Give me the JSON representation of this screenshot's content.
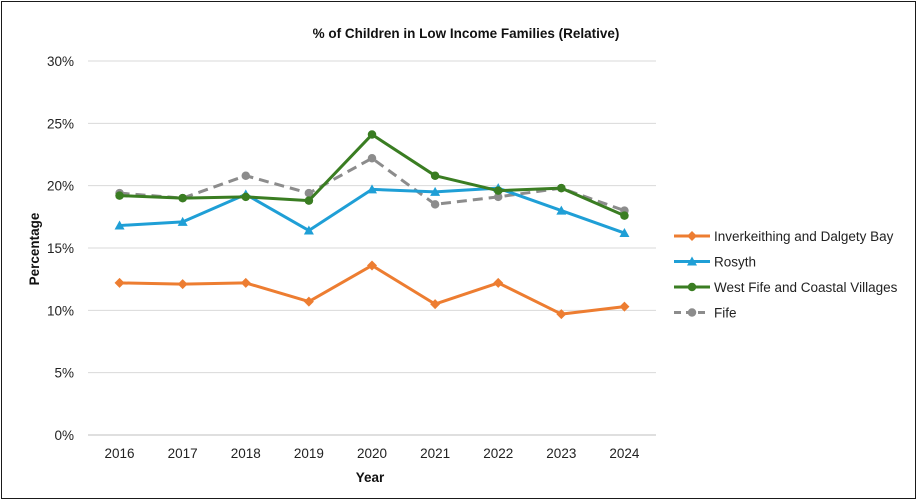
{
  "chart_data": {
    "type": "line",
    "title": "% of Children in Low Income Families (Relative)",
    "xlabel": "Year",
    "ylabel": "Percentage",
    "categories": [
      "2016",
      "2017",
      "2018",
      "2019",
      "2020",
      "2021",
      "2022",
      "2023",
      "2024"
    ],
    "ylim": [
      0,
      30
    ],
    "yticks": [
      0,
      5,
      10,
      15,
      20,
      25,
      30
    ],
    "ytick_labels": [
      "0%",
      "5%",
      "10%",
      "15%",
      "20%",
      "25%",
      "30%"
    ],
    "grid": "horizontal",
    "legend_position": "right",
    "series": [
      {
        "name": "Inverkeithing and Dalgety Bay",
        "color": "#ed7d31",
        "marker": "diamond",
        "dash": "solid",
        "values": [
          12.2,
          12.1,
          12.2,
          10.7,
          13.6,
          10.5,
          12.2,
          9.7,
          10.3
        ]
      },
      {
        "name": "Rosyth",
        "color": "#1f9fd6",
        "marker": "triangle",
        "dash": "solid",
        "values": [
          16.8,
          17.1,
          19.3,
          16.4,
          19.7,
          19.5,
          19.8,
          18.0,
          16.2
        ]
      },
      {
        "name": "West Fife and Coastal Villages",
        "color": "#3a7d22",
        "marker": "circle",
        "dash": "solid",
        "values": [
          19.2,
          19.0,
          19.1,
          18.8,
          24.1,
          20.8,
          19.6,
          19.8,
          17.6
        ]
      },
      {
        "name": "Fife",
        "color": "#8c8c8c",
        "marker": "circle",
        "dash": "dashed",
        "values": [
          19.4,
          19.0,
          20.8,
          19.4,
          22.2,
          18.5,
          19.1,
          19.8,
          18.0
        ]
      }
    ]
  }
}
